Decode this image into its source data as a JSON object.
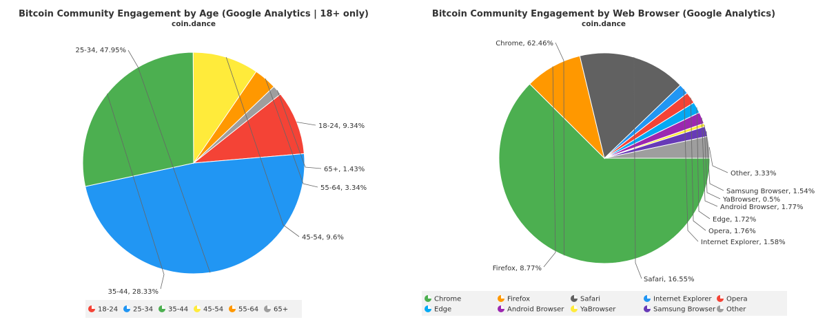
{
  "chart_data": [
    {
      "type": "pie",
      "title": "Bitcoin Community Engagement by Age (Google Analytics | 18+ only)",
      "subtitle": "coin.dance",
      "start_category": "18-24",
      "slices": [
        {
          "name": "18-24",
          "value": 9.34,
          "label": "18-24, 9.34%",
          "color": "#f44336"
        },
        {
          "name": "25-34",
          "value": 47.95,
          "label": "25-34, 47.95%",
          "color": "#2196f3"
        },
        {
          "name": "35-44",
          "value": 28.33,
          "label": "35-44, 28.33%",
          "color": "#4caf50"
        },
        {
          "name": "45-54",
          "value": 9.6,
          "label": "45-54, 9.6%",
          "color": "#ffeb3b"
        },
        {
          "name": "55-64",
          "value": 3.34,
          "label": "55-64, 3.34%",
          "color": "#ff9800"
        },
        {
          "name": "65+",
          "value": 1.43,
          "label": "65+, 1.43%",
          "color": "#9e9e9e"
        }
      ],
      "legend": [
        "18-24",
        "25-34",
        "35-44",
        "45-54",
        "55-64",
        "65+"
      ],
      "legend_position": "bottom"
    },
    {
      "type": "pie",
      "title": "Bitcoin Community Engagement by Web Browser (Google Analytics)",
      "subtitle": "coin.dance",
      "slices": [
        {
          "name": "Chrome",
          "value": 62.46,
          "label": "Chrome, 62.46%",
          "color": "#4caf50"
        },
        {
          "name": "Firefox",
          "value": 8.77,
          "label": "Firefox, 8.77%",
          "color": "#ff9800"
        },
        {
          "name": "Safari",
          "value": 16.55,
          "label": "Safari, 16.55%",
          "color": "#616161"
        },
        {
          "name": "Internet Explorer",
          "value": 1.58,
          "label": "Internet Explorer, 1.58%",
          "color": "#2196f3"
        },
        {
          "name": "Opera",
          "value": 1.76,
          "label": "Opera, 1.76%",
          "color": "#f44336"
        },
        {
          "name": "Edge",
          "value": 1.72,
          "label": "Edge, 1.72%",
          "color": "#03a9f4"
        },
        {
          "name": "Android Browser",
          "value": 1.77,
          "label": "Android Browser, 1.77%",
          "color": "#9c27b0"
        },
        {
          "name": "YaBrowser",
          "value": 0.5,
          "label": "YaBrowser, 0.5%",
          "color": "#ffeb3b"
        },
        {
          "name": "Samsung Browser",
          "value": 1.54,
          "label": "Samsung Browser, 1.54%",
          "color": "#673ab7"
        },
        {
          "name": "Other",
          "value": 3.33,
          "label": "Other, 3.33%",
          "color": "#9e9e9e"
        }
      ],
      "legend": [
        "Chrome",
        "Firefox",
        "Safari",
        "Internet Explorer",
        "Opera",
        "Edge",
        "Android Browser",
        "YaBrowser",
        "Samsung Browser",
        "Other"
      ],
      "legend_position": "bottom"
    }
  ]
}
